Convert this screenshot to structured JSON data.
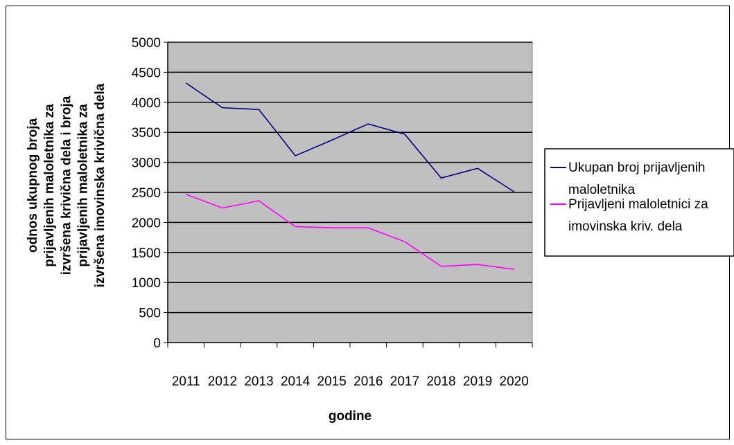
{
  "chart_data": {
    "type": "line",
    "title": "",
    "xlabel": "godine",
    "ylabel_lines": [
      "odnos ukupnog broja",
      "prijavljenih maloletnika za",
      "izvršena krivična dela i broja",
      "prijavljenih maloletnika za",
      "izvršena imovinska krivična dela"
    ],
    "categories": [
      "2011",
      "2012",
      "2013",
      "2014",
      "2015",
      "2016",
      "2017",
      "2018",
      "2019",
      "2020"
    ],
    "y_ticks": [
      "0",
      "500",
      "1000",
      "1500",
      "2000",
      "2500",
      "3000",
      "3500",
      "4000",
      "4500",
      "5000"
    ],
    "ylim": [
      0,
      5000
    ],
    "grid": true,
    "plot_background": "#c0c0c0",
    "legend_position": "right",
    "series": [
      {
        "name_lines": [
          "Ukupan broj prijavljenih",
          "maloletnika"
        ],
        "color": "#000080",
        "values": [
          4320,
          3910,
          3880,
          3110,
          3370,
          3640,
          3470,
          2740,
          2900,
          2510
        ]
      },
      {
        "name_lines": [
          "Prijavljeni maloletnici za",
          "imovinska kriv. dela"
        ],
        "color": "#ff00ff",
        "values": [
          2470,
          2240,
          2360,
          1930,
          1910,
          1910,
          1680,
          1270,
          1300,
          1220
        ]
      }
    ]
  }
}
